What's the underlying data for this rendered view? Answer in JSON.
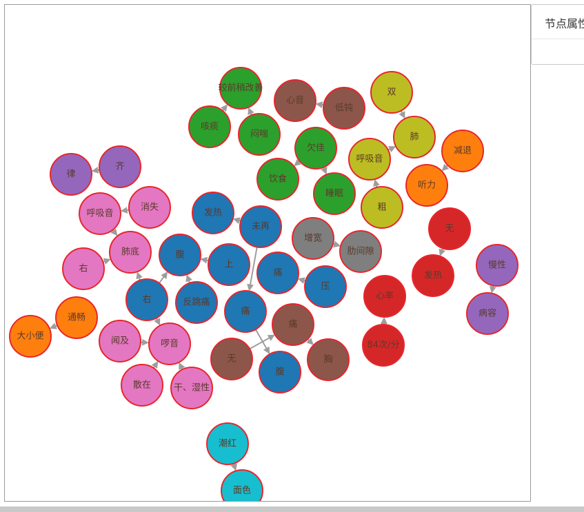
{
  "attribute_panel": {
    "title": "节点属性"
  },
  "palette": {
    "brown": "#8c564b",
    "green": "#2ca02c",
    "olive": "#bcbd22",
    "orange": "#ff7f0e",
    "purple": "#9467bd",
    "pink": "#e377c2",
    "blue": "#1f77b4",
    "gray": "#7f7f7f",
    "red": "#d62728",
    "cyan": "#17becf"
  },
  "nodes": [
    {
      "id": "n1",
      "label": "较前稍改善",
      "color": "green"
    },
    {
      "id": "n2",
      "label": "咳痰",
      "color": "green"
    },
    {
      "id": "n3",
      "label": "闷喘",
      "color": "green"
    },
    {
      "id": "n4",
      "label": "欠佳",
      "color": "green"
    },
    {
      "id": "n5",
      "label": "饮食",
      "color": "green"
    },
    {
      "id": "n6",
      "label": "睡眠",
      "color": "green"
    },
    {
      "id": "n7",
      "label": "心音",
      "color": "brown"
    },
    {
      "id": "n8",
      "label": "低钝",
      "color": "brown"
    },
    {
      "id": "n9",
      "label": "双",
      "color": "olive"
    },
    {
      "id": "n10",
      "label": "肺",
      "color": "olive"
    },
    {
      "id": "n11",
      "label": "呼吸音",
      "color": "olive"
    },
    {
      "id": "n12",
      "label": "粗",
      "color": "olive"
    },
    {
      "id": "n13",
      "label": "减退",
      "color": "orange"
    },
    {
      "id": "n14",
      "label": "听力",
      "color": "orange"
    },
    {
      "id": "n15",
      "label": "律",
      "color": "purple"
    },
    {
      "id": "n16",
      "label": "齐",
      "color": "purple"
    },
    {
      "id": "n17",
      "label": "呼吸音",
      "color": "pink"
    },
    {
      "id": "n18",
      "label": "消失",
      "color": "pink"
    },
    {
      "id": "n19",
      "label": "肺底",
      "color": "pink"
    },
    {
      "id": "n20",
      "label": "右",
      "color": "pink"
    },
    {
      "id": "n21",
      "label": "发热",
      "color": "blue"
    },
    {
      "id": "n22",
      "label": "未再",
      "color": "blue"
    },
    {
      "id": "n23",
      "label": "增宽",
      "color": "gray"
    },
    {
      "id": "n24",
      "label": "肋间隙",
      "color": "gray"
    },
    {
      "id": "n25",
      "label": "腹",
      "color": "blue"
    },
    {
      "id": "n26",
      "label": "上",
      "color": "blue"
    },
    {
      "id": "n27",
      "label": "痛",
      "color": "blue"
    },
    {
      "id": "n28",
      "label": "压",
      "color": "blue"
    },
    {
      "id": "n29",
      "label": "右",
      "color": "blue"
    },
    {
      "id": "n30",
      "label": "反跳痛",
      "color": "blue"
    },
    {
      "id": "n31",
      "label": "痛",
      "color": "blue"
    },
    {
      "id": "n32",
      "label": "痛",
      "color": "brown"
    },
    {
      "id": "n33",
      "label": "无",
      "color": "brown"
    },
    {
      "id": "n34",
      "label": "腹",
      "color": "blue"
    },
    {
      "id": "n35",
      "label": "胸",
      "color": "brown"
    },
    {
      "id": "n36",
      "label": "无",
      "color": "red"
    },
    {
      "id": "n37",
      "label": "发热",
      "color": "red"
    },
    {
      "id": "n38",
      "label": "心率",
      "color": "red"
    },
    {
      "id": "n39",
      "label": "84次/分",
      "color": "red"
    },
    {
      "id": "n40",
      "label": "慢性",
      "color": "purple"
    },
    {
      "id": "n41",
      "label": "病容",
      "color": "purple"
    },
    {
      "id": "n42",
      "label": "通畅",
      "color": "orange"
    },
    {
      "id": "n43",
      "label": "大小便",
      "color": "orange"
    },
    {
      "id": "n44",
      "label": "闻及",
      "color": "pink"
    },
    {
      "id": "n45",
      "label": "啰音",
      "color": "pink"
    },
    {
      "id": "n46",
      "label": "散在",
      "color": "pink"
    },
    {
      "id": "n47",
      "label": "干、湿性",
      "color": "pink"
    },
    {
      "id": "n48",
      "label": "潮红",
      "color": "cyan"
    },
    {
      "id": "n49",
      "label": "面色",
      "color": "cyan"
    }
  ],
  "edges": [
    [
      "n2",
      "n1"
    ],
    [
      "n3",
      "n1"
    ],
    [
      "n4",
      "n5"
    ],
    [
      "n4",
      "n6"
    ],
    [
      "n8",
      "n7"
    ],
    [
      "n9",
      "n10"
    ],
    [
      "n11",
      "n10"
    ],
    [
      "n12",
      "n11"
    ],
    [
      "n13",
      "n14"
    ],
    [
      "n16",
      "n15"
    ],
    [
      "n18",
      "n17"
    ],
    [
      "n17",
      "n19"
    ],
    [
      "n20",
      "n19"
    ],
    [
      "n22",
      "n21"
    ],
    [
      "n22",
      "n31"
    ],
    [
      "n23",
      "n24"
    ],
    [
      "n26",
      "n25"
    ],
    [
      "n28",
      "n27"
    ],
    [
      "n29",
      "n25"
    ],
    [
      "n29",
      "n19"
    ],
    [
      "n30",
      "n25"
    ],
    [
      "n29",
      "n45"
    ],
    [
      "n31",
      "n34"
    ],
    [
      "n33",
      "n32"
    ],
    [
      "n32",
      "n35"
    ],
    [
      "n36",
      "n37"
    ],
    [
      "n39",
      "n38"
    ],
    [
      "n40",
      "n41"
    ],
    [
      "n42",
      "n43"
    ],
    [
      "n44",
      "n45"
    ],
    [
      "n46",
      "n45"
    ],
    [
      "n47",
      "n45"
    ],
    [
      "n48",
      "n49"
    ]
  ]
}
